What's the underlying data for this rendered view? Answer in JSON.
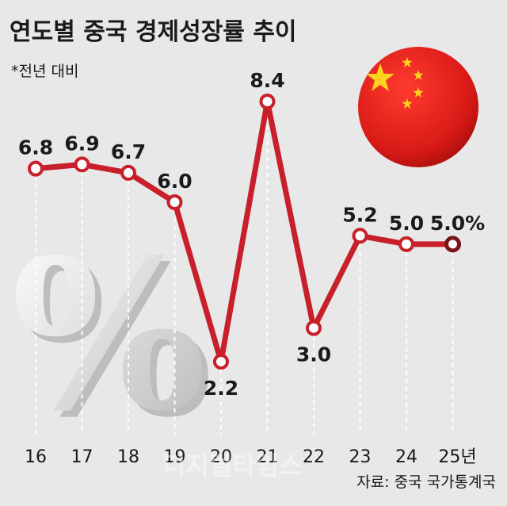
{
  "chart_data": {
    "type": "line",
    "title": "연도별 중국 경제성장률 추이",
    "subtitle": "*전년 대비",
    "categories": [
      "16",
      "17",
      "18",
      "19",
      "20",
      "21",
      "22",
      "23",
      "24",
      "25년"
    ],
    "values": [
      6.8,
      6.9,
      6.7,
      6.0,
      2.2,
      8.4,
      3.0,
      5.2,
      5.0,
      5.0
    ],
    "value_labels": [
      "6.8",
      "6.9",
      "6.7",
      "6.0",
      "2.2",
      "8.4",
      "3.0",
      "5.2",
      "5.0",
      "5.0%"
    ],
    "ylim": [
      2.2,
      8.4
    ],
    "source": "자료: 중국 국가통계국",
    "decoration": "percent-symbol",
    "watermark": "디지털타임스",
    "line_color": "#c8202a",
    "highlight_color": "#7a1418"
  },
  "flag_colors": {
    "red": "#e0201c",
    "star": "#ffd21f"
  }
}
